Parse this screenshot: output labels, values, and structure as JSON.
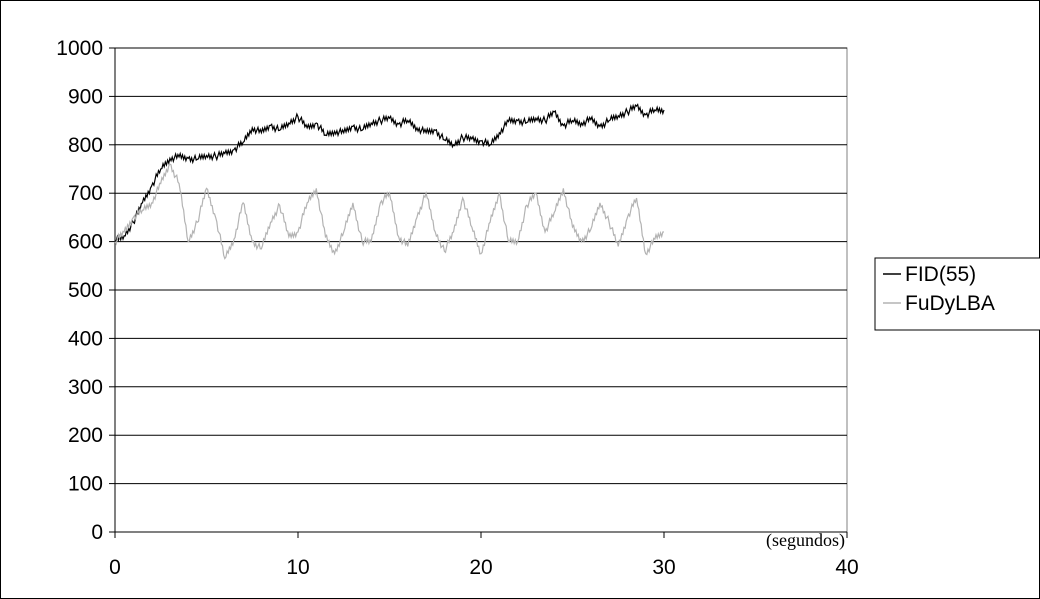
{
  "chart_data": {
    "type": "line",
    "title": "",
    "xlabel": "(segundos)",
    "ylabel": "",
    "xlim": [
      0,
      40
    ],
    "ylim": [
      0,
      1000
    ],
    "x_ticks": [
      0,
      10,
      20,
      30,
      40
    ],
    "y_ticks": [
      0,
      100,
      200,
      300,
      400,
      500,
      600,
      700,
      800,
      900,
      1000
    ],
    "grid": "horizontal",
    "legend_position": "right",
    "series": [
      {
        "name": "FID(55)",
        "color": "#000000",
        "points": [
          [
            0,
            600
          ],
          [
            0.5,
            612
          ],
          [
            1,
            640
          ],
          [
            1.5,
            680
          ],
          [
            2,
            715
          ],
          [
            2.5,
            750
          ],
          [
            3,
            772
          ],
          [
            3.5,
            775
          ],
          [
            4,
            772
          ],
          [
            4.5,
            770
          ],
          [
            5,
            778
          ],
          [
            5.5,
            776
          ],
          [
            6,
            782
          ],
          [
            6.5,
            790
          ],
          [
            7,
            805
          ],
          [
            7.5,
            835
          ],
          [
            8,
            825
          ],
          [
            8.5,
            840
          ],
          [
            9,
            830
          ],
          [
            9.5,
            845
          ],
          [
            10,
            858
          ],
          [
            10.5,
            835
          ],
          [
            11,
            845
          ],
          [
            11.5,
            820
          ],
          [
            12,
            828
          ],
          [
            12.5,
            825
          ],
          [
            13,
            838
          ],
          [
            13.5,
            830
          ],
          [
            14,
            845
          ],
          [
            14.5,
            850
          ],
          [
            15,
            855
          ],
          [
            15.5,
            843
          ],
          [
            16,
            850
          ],
          [
            16.5,
            835
          ],
          [
            17,
            825
          ],
          [
            17.5,
            830
          ],
          [
            18,
            810
          ],
          [
            18.5,
            800
          ],
          [
            19,
            815
          ],
          [
            19.5,
            812
          ],
          [
            20,
            808
          ],
          [
            20.5,
            800
          ],
          [
            21,
            825
          ],
          [
            21.5,
            848
          ],
          [
            22,
            850
          ],
          [
            22.5,
            846
          ],
          [
            23,
            855
          ],
          [
            23.5,
            850
          ],
          [
            24,
            868
          ],
          [
            24.5,
            840
          ],
          [
            25,
            850
          ],
          [
            25.5,
            845
          ],
          [
            26,
            852
          ],
          [
            26.5,
            838
          ],
          [
            27,
            850
          ],
          [
            27.5,
            860
          ],
          [
            28,
            868
          ],
          [
            28.5,
            880
          ],
          [
            29,
            862
          ],
          [
            29.5,
            872
          ],
          [
            30,
            872
          ]
        ]
      },
      {
        "name": "FuDyLBA",
        "color": "#b3b3b3",
        "points": [
          [
            0,
            600
          ],
          [
            0.5,
            620
          ],
          [
            1,
            650
          ],
          [
            1.5,
            665
          ],
          [
            2,
            680
          ],
          [
            2.5,
            720
          ],
          [
            3,
            760
          ],
          [
            3.5,
            720
          ],
          [
            4,
            600
          ],
          [
            4.5,
            640
          ],
          [
            5,
            710
          ],
          [
            5.5,
            650
          ],
          [
            6,
            565
          ],
          [
            6.5,
            605
          ],
          [
            7,
            680
          ],
          [
            7.5,
            600
          ],
          [
            8,
            585
          ],
          [
            8.5,
            640
          ],
          [
            9,
            675
          ],
          [
            9.5,
            610
          ],
          [
            10,
            620
          ],
          [
            10.5,
            680
          ],
          [
            11,
            710
          ],
          [
            11.5,
            610
          ],
          [
            12,
            575
          ],
          [
            12.5,
            620
          ],
          [
            13,
            680
          ],
          [
            13.5,
            600
          ],
          [
            14,
            600
          ],
          [
            14.5,
            680
          ],
          [
            15,
            700
          ],
          [
            15.5,
            610
          ],
          [
            16,
            590
          ],
          [
            16.5,
            650
          ],
          [
            17,
            700
          ],
          [
            17.5,
            620
          ],
          [
            18,
            580
          ],
          [
            18.5,
            620
          ],
          [
            19,
            690
          ],
          [
            19.5,
            630
          ],
          [
            20,
            575
          ],
          [
            20.5,
            640
          ],
          [
            21,
            700
          ],
          [
            21.5,
            600
          ],
          [
            22,
            600
          ],
          [
            22.5,
            675
          ],
          [
            23,
            700
          ],
          [
            23.5,
            620
          ],
          [
            24,
            660
          ],
          [
            24.5,
            710
          ],
          [
            25,
            630
          ],
          [
            25.5,
            600
          ],
          [
            26,
            625
          ],
          [
            26.5,
            680
          ],
          [
            27,
            640
          ],
          [
            27.5,
            590
          ],
          [
            28,
            650
          ],
          [
            28.5,
            690
          ],
          [
            29,
            575
          ],
          [
            29.5,
            605
          ],
          [
            30,
            620
          ]
        ]
      }
    ]
  }
}
